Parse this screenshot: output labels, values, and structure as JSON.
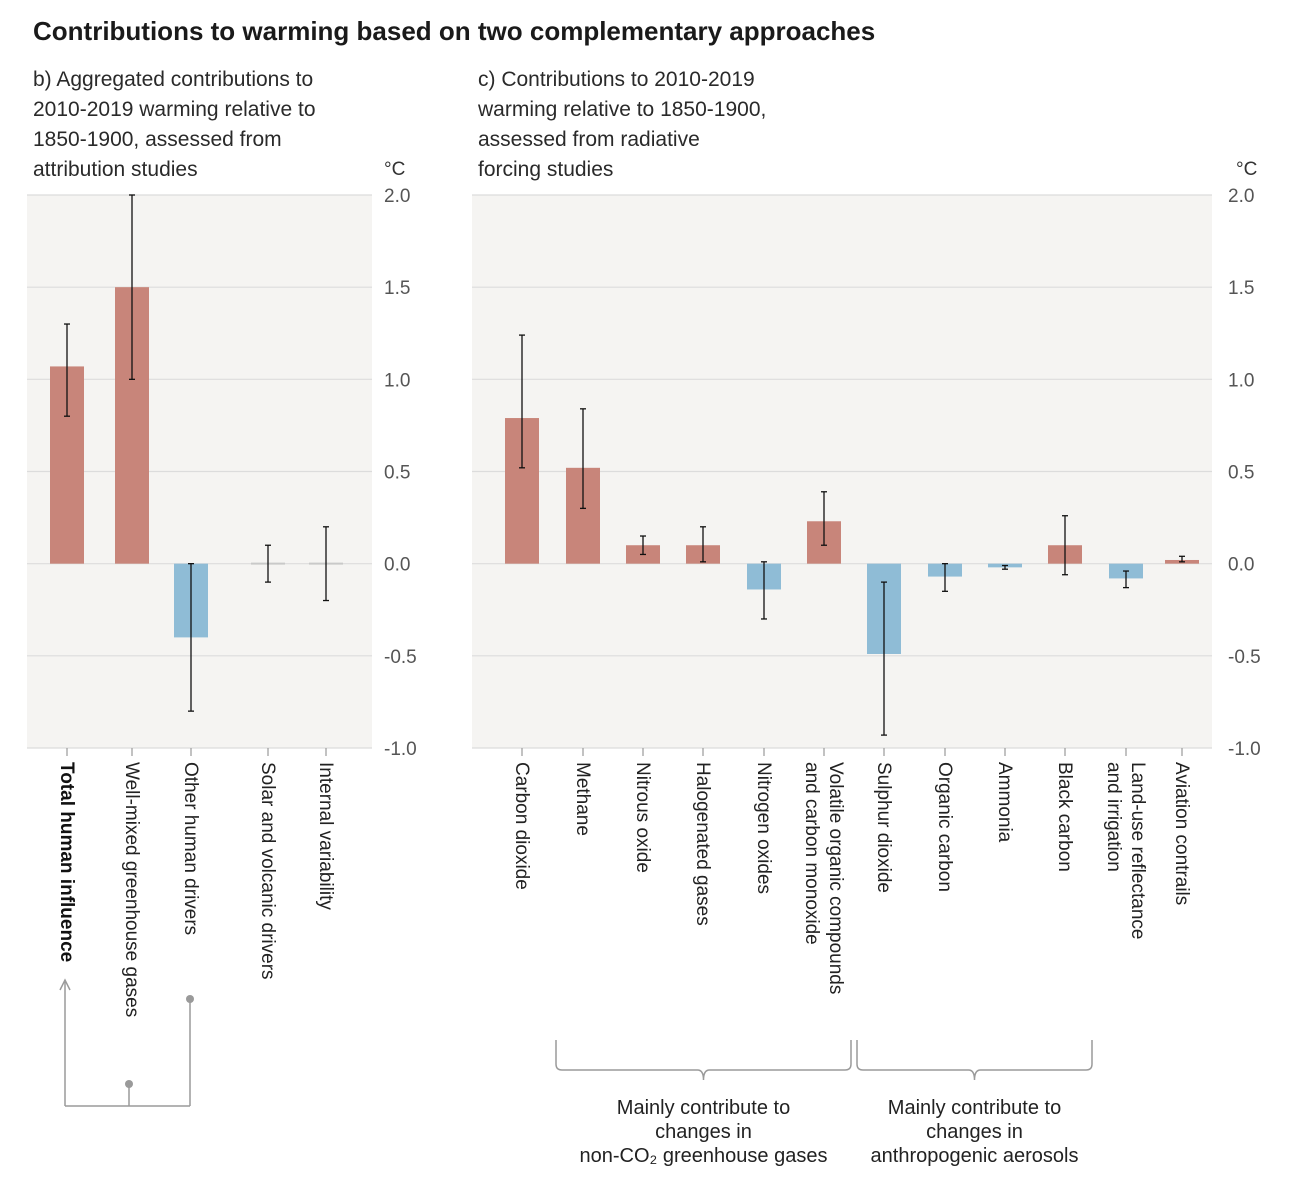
{
  "title": "Contributions to warming based on two complementary approaches",
  "colors": {
    "warming": "#c8857a",
    "cooling": "#8fbcd6",
    "panel_bg": "#f5f4f2",
    "grid": "#dcdcdc",
    "error": "#111111",
    "connector": "#9a9a9a"
  },
  "chart_data": [
    {
      "type": "bar",
      "panel": "b",
      "subtitle_lines": [
        "b) Aggregated contributions to",
        "2010-2019 warming relative to",
        "1850-1900, assessed from",
        "attribution studies"
      ],
      "ylabel": "°C",
      "ylim": [
        -1.0,
        2.0
      ],
      "ytick_labels": [
        "2.0",
        "1.5",
        "1.0",
        "0.5",
        "0.0",
        "-0.5",
        "-1.0"
      ],
      "yticks": [
        2.0,
        1.5,
        1.0,
        0.5,
        0.0,
        -0.5,
        -1.0
      ],
      "grid": true,
      "categories": [
        "Total human influence",
        "Well-mixed greenhouse gases",
        "Other human drivers",
        "Solar and volcanic drivers",
        "Internal variability"
      ],
      "bold_category": "Total human influence",
      "values": [
        1.07,
        1.5,
        -0.4,
        0.0,
        0.0
      ],
      "error_low": [
        0.8,
        1.0,
        -0.8,
        -0.1,
        -0.2
      ],
      "error_high": [
        1.3,
        2.0,
        0.0,
        0.1,
        0.2
      ]
    },
    {
      "type": "bar",
      "panel": "c",
      "subtitle_lines": [
        "c) Contributions to 2010-2019",
        "warming relative to 1850-1900,",
        "assessed from radiative",
        "forcing studies"
      ],
      "ylabel": "°C",
      "ylim": [
        -1.0,
        2.0
      ],
      "ytick_labels": [
        "2.0",
        "1.5",
        "1.0",
        "0.5",
        "0.0",
        "-0.5",
        "-1.0"
      ],
      "yticks": [
        2.0,
        1.5,
        1.0,
        0.5,
        0.0,
        -0.5,
        -1.0
      ],
      "grid": true,
      "categories": [
        [
          "Carbon dioxide"
        ],
        [
          "Methane"
        ],
        [
          "Nitrous oxide"
        ],
        [
          "Halogenated gases"
        ],
        [
          "Nitrogen oxides"
        ],
        [
          "Volatile organic compounds",
          "and carbon monoxide"
        ],
        [
          "Sulphur dioxide"
        ],
        [
          "Organic carbon"
        ],
        [
          "Ammonia"
        ],
        [
          "Black carbon"
        ],
        [
          "Land-use reflectance",
          "and irrigation"
        ],
        [
          "Aviation contrails"
        ]
      ],
      "values": [
        0.79,
        0.52,
        0.1,
        0.1,
        -0.14,
        0.23,
        -0.49,
        -0.07,
        -0.02,
        0.1,
        -0.08,
        0.02
      ],
      "error_low": [
        0.52,
        0.3,
        0.05,
        0.01,
        -0.3,
        0.1,
        -0.93,
        -0.15,
        -0.03,
        -0.06,
        -0.13,
        0.01
      ],
      "error_high": [
        1.24,
        0.84,
        0.15,
        0.2,
        0.01,
        0.39,
        -0.1,
        0.0,
        -0.01,
        0.26,
        -0.04,
        0.04
      ],
      "groups": [
        {
          "lines": [
            "Mainly contribute to",
            "changes in",
            "non-CO₂ greenhouse gases"
          ],
          "from": 1,
          "to": 5
        },
        {
          "lines": [
            "Mainly contribute to",
            "changes in",
            "anthropogenic aerosols"
          ],
          "from": 6,
          "to": 9
        }
      ]
    }
  ]
}
